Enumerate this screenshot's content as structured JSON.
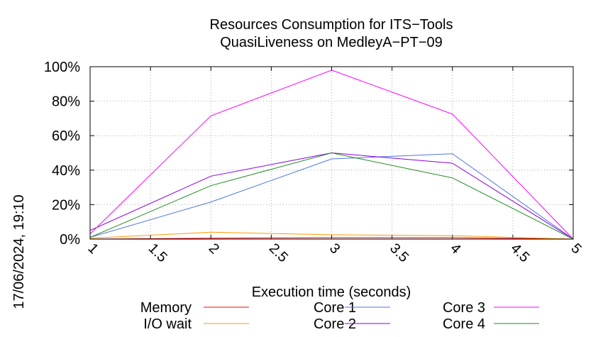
{
  "chart_data": {
    "type": "line",
    "title": "Resources Consumption for ITS−Tools",
    "subtitle": "QuasiLiveness on MedleyA−PT−09",
    "xlabel": "Execution time (seconds)",
    "ylabel": "",
    "timestamp": "17/06/2024, 19:10",
    "xlim": [
      1,
      5
    ],
    "ylim": [
      0,
      100
    ],
    "x_ticks": [
      "1",
      "1.5",
      "2",
      "2.5",
      "3",
      "3.5",
      "4",
      "4.5",
      "5"
    ],
    "y_ticks": [
      "0%",
      "20%",
      "40%",
      "60%",
      "80%",
      "100%"
    ],
    "grid": true,
    "legend_position": "bottom",
    "x": [
      1,
      2,
      3,
      4,
      5
    ],
    "series": [
      {
        "name": "Memory",
        "color": "#ff0000",
        "values": [
          0,
          0.5,
          0.8,
          0.8,
          0
        ]
      },
      {
        "name": "I/O wait",
        "color": "#ff9900",
        "values": [
          0.5,
          4,
          2.5,
          2,
          0
        ]
      },
      {
        "name": "Core 1",
        "color": "#4f74e0",
        "values": [
          1,
          21.5,
          46.5,
          49.5,
          0
        ]
      },
      {
        "name": "Core 2",
        "color": "#8800dd",
        "values": [
          5,
          36.5,
          50,
          44,
          0
        ]
      },
      {
        "name": "Core 3",
        "color": "#ff00ff",
        "values": [
          3,
          71.5,
          98,
          72.5,
          0
        ]
      },
      {
        "name": "Core 4",
        "color": "#228b22",
        "values": [
          1,
          31,
          50,
          35.5,
          0
        ]
      }
    ]
  }
}
